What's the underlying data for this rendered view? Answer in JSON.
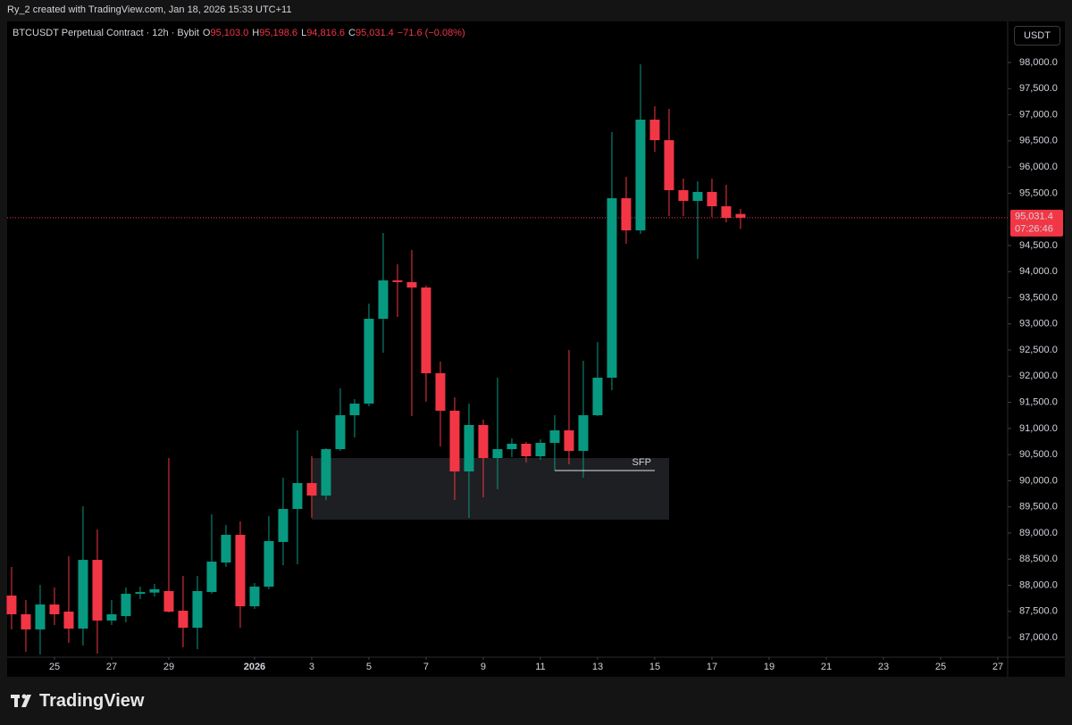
{
  "header": {
    "text": "Ry_2 created with TradingView.com, Jan 18, 2026 15:33 UTC+11"
  },
  "chart_data": {
    "type": "candlestick",
    "symbol": "BTCUSDT Perpetual Contract · 12h · Bybit",
    "ohlc_legend": [
      {
        "key": "O",
        "value": "95,103.0"
      },
      {
        "key": "H",
        "value": "95,198.6"
      },
      {
        "key": "L",
        "value": "94,816.6"
      },
      {
        "key": "C",
        "value": "95,031.4"
      }
    ],
    "change": "−71.6 (−0.08%)",
    "currency": "USDT",
    "open": [
      87803,
      87445,
      87155,
      87632,
      87496,
      87171,
      88486,
      87325,
      87410,
      87837,
      87860,
      87889,
      87513,
      87188,
      87872,
      88435,
      88965,
      87598,
      87974,
      88828,
      89460,
      89955,
      89716,
      90604,
      91253,
      91475,
      93098,
      93832,
      93800,
      93696,
      92056,
      91339,
      90178,
      91066,
      90434,
      90604,
      90707,
      90468,
      90724,
      90963,
      90570,
      91253,
      91971,
      95404,
      94789,
      96907,
      96514,
      95558,
      95353,
      95524,
      95250,
      95103.0
    ],
    "high": [
      88350,
      87718,
      88008,
      87957,
      88555,
      89511,
      89067,
      87718,
      87957,
      87974,
      88025,
      90434,
      88179,
      88179,
      89358,
      89153,
      89221,
      88043,
      89323,
      90058,
      90963,
      90468,
      90620,
      91766,
      91560,
      93388,
      94738,
      94140,
      94413,
      93730,
      92278,
      91595,
      91475,
      91168,
      91971,
      90810,
      90741,
      90792,
      91253,
      92500,
      92295,
      92654,
      96668,
      95814,
      97966,
      97163,
      97112,
      95780,
      95729,
      95780,
      95660,
      95198.6
    ],
    "low": [
      87155,
      86727,
      86676,
      87240,
      86898,
      86847,
      86693,
      87240,
      87291,
      87735,
      87786,
      87479,
      86813,
      86778,
      87837,
      88350,
      87188,
      87547,
      87923,
      88384,
      88401,
      89289,
      89630,
      90570,
      90827,
      91424,
      92449,
      93132,
      91236,
      91510,
      90656,
      89631,
      89289,
      89682,
      89836,
      90451,
      90348,
      90400,
      90195,
      90314,
      90058,
      91236,
      91732,
      94533,
      94721,
      96292,
      95062,
      95062,
      94242,
      95045,
      94943,
      94816.6
    ],
    "close": [
      87445,
      87155,
      87632,
      87445,
      87171,
      88486,
      87325,
      87445,
      87837,
      87870,
      87923,
      87496,
      87188,
      87889,
      88452,
      88965,
      87598,
      87974,
      88845,
      89460,
      89955,
      89716,
      90604,
      91253,
      91475,
      93098,
      93832,
      93800,
      93696,
      92056,
      91339,
      90178,
      91066,
      90434,
      90604,
      90707,
      90468,
      90724,
      90963,
      90570,
      91253,
      91971,
      95404,
      94789,
      96907,
      96514,
      95558,
      95353,
      95524,
      95250,
      95028,
      95031.4
    ],
    "up_color": "#089981",
    "down_color": "#f23645",
    "xlim": [
      -0.31,
      69.69
    ],
    "xticks": [
      {
        "value": 3,
        "label": "25"
      },
      {
        "value": 7,
        "label": "27"
      },
      {
        "value": 11,
        "label": "29"
      },
      {
        "value": 17,
        "label": "2026"
      },
      {
        "value": 21,
        "label": "3"
      },
      {
        "value": 25,
        "label": "5"
      },
      {
        "value": 29,
        "label": "7"
      },
      {
        "value": 33,
        "label": "9"
      },
      {
        "value": 37,
        "label": "11"
      },
      {
        "value": 41,
        "label": "13"
      },
      {
        "value": 45,
        "label": "15"
      },
      {
        "value": 49,
        "label": "17"
      },
      {
        "value": 53,
        "label": "19"
      },
      {
        "value": 57,
        "label": "21"
      },
      {
        "value": 61,
        "label": "23"
      },
      {
        "value": 65,
        "label": "25"
      },
      {
        "value": 69,
        "label": "27"
      }
    ],
    "ylim": [
      86625,
      98786
    ],
    "yticks": [
      {
        "value": 87000,
        "label": "87,000.0"
      },
      {
        "value": 87500,
        "label": "87,500.0"
      },
      {
        "value": 88000,
        "label": "88,000.0"
      },
      {
        "value": 88500,
        "label": "88,500.0"
      },
      {
        "value": 89000,
        "label": "89,000.0"
      },
      {
        "value": 89500,
        "label": "89,500.0"
      },
      {
        "value": 90000,
        "label": "90,000.0"
      },
      {
        "value": 90500,
        "label": "90,500.0"
      },
      {
        "value": 91000,
        "label": "91,000.0"
      },
      {
        "value": 91500,
        "label": "91,500.0"
      },
      {
        "value": 92000,
        "label": "92,000.0"
      },
      {
        "value": 92500,
        "label": "92,500.0"
      },
      {
        "value": 93000,
        "label": "93,000.0"
      },
      {
        "value": 93500,
        "label": "93,500.0"
      },
      {
        "value": 94000,
        "label": "94,000.0"
      },
      {
        "value": 94500,
        "label": "94,500.0"
      },
      {
        "value": 95500,
        "label": "95,500.0"
      },
      {
        "value": 96000,
        "label": "96,000.0"
      },
      {
        "value": 96500,
        "label": "96,500.0"
      },
      {
        "value": 97000,
        "label": "97,000.0"
      },
      {
        "value": 97500,
        "label": "97,500.0"
      },
      {
        "value": 98000,
        "label": "98,000.0"
      }
    ],
    "last_price": {
      "value": 95031.4,
      "label": "95,031.4"
    },
    "countdown": "07:26:46",
    "zones": [
      {
        "xlim": [
          21,
          46
        ],
        "ylim": [
          89255,
          90434
        ]
      }
    ],
    "annotations": [
      {
        "text": "SFP",
        "y": 90195,
        "xlim": [
          38,
          45
        ]
      }
    ],
    "grid": false
  },
  "footer": {
    "logo": "TradingView"
  }
}
